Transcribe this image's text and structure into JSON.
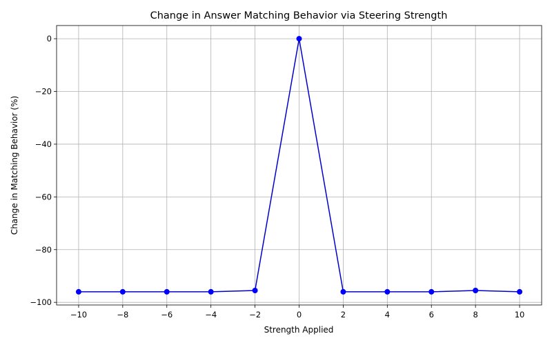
{
  "chart_data": {
    "type": "line",
    "title": "Change in Answer Matching Behavior via Steering Strength",
    "xlabel": "Strength Applied",
    "ylabel": "Change in Matching Behavior (%)",
    "x": [
      -10,
      -8,
      -6,
      -4,
      -2,
      0,
      2,
      4,
      6,
      8,
      10
    ],
    "series": [
      {
        "values": [
          -96,
          -96,
          -96,
          -96,
          -95.5,
          0,
          -96,
          -96,
          -96,
          -95.5,
          -96
        ],
        "color": "#0000ff",
        "marker": "circle"
      }
    ],
    "xlim": [
      -11,
      11
    ],
    "ylim": [
      -101,
      5
    ],
    "xticks": [
      -10,
      -8,
      -6,
      -4,
      -2,
      0,
      2,
      4,
      6,
      8,
      10
    ],
    "yticks": [
      -100,
      -80,
      -60,
      -40,
      -20,
      0
    ],
    "xtick_labels": [
      "−10",
      "−8",
      "−6",
      "−4",
      "−2",
      "0",
      "2",
      "4",
      "6",
      "8",
      "10"
    ],
    "ytick_labels": [
      "−100",
      "−80",
      "−60",
      "−40",
      "−20",
      "0"
    ],
    "grid": true
  }
}
